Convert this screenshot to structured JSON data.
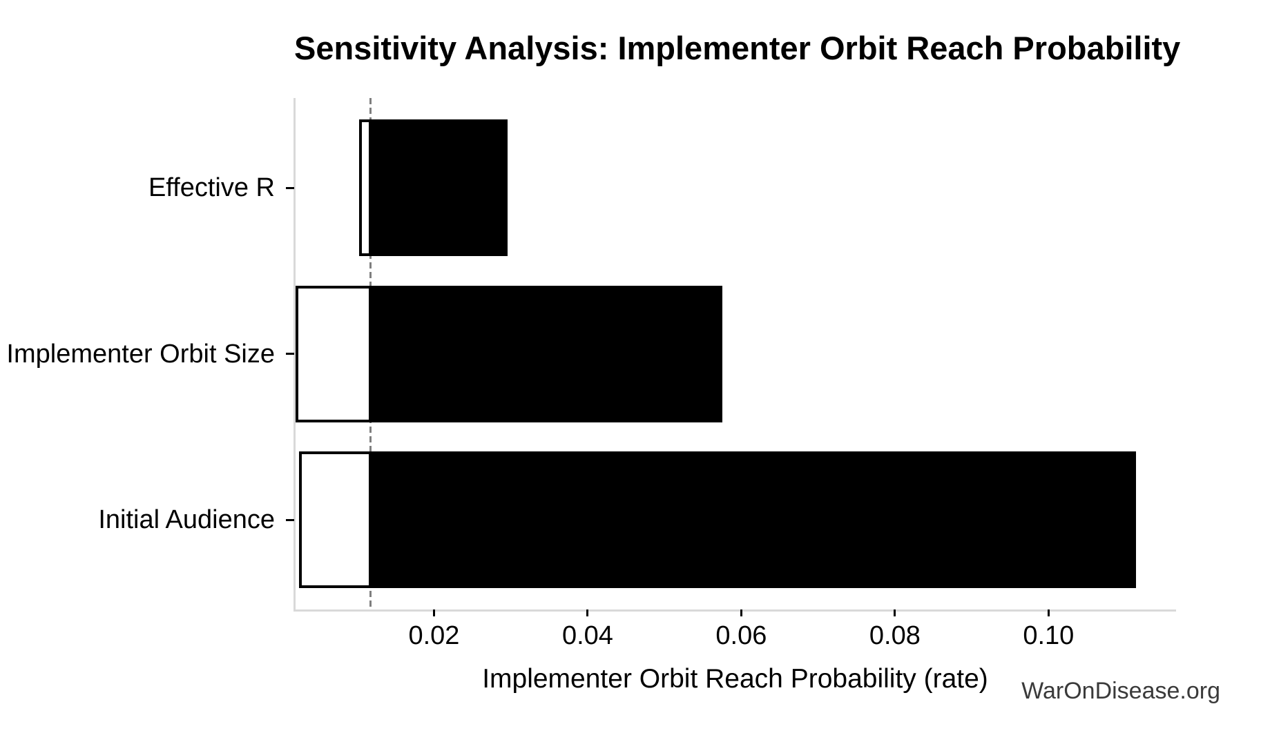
{
  "title": "Sensitivity Analysis: Implementer Orbit Reach Probability",
  "watermark": "WarOnDisease.org",
  "chart_data": {
    "type": "bar",
    "subtype": "tornado-sensitivity",
    "orientation": "horizontal",
    "title": "Sensitivity Analysis: Implementer Orbit Reach Probability",
    "xlabel": "Implementer Orbit Reach Probability (rate)",
    "ylabel": "",
    "categories": [
      "Effective R",
      "Implementer Orbit Size",
      "Initial Audience"
    ],
    "series": [
      {
        "name": "low",
        "values": [
          0.0104,
          0.0022,
          0.0026
        ]
      },
      {
        "name": "high",
        "values": [
          0.0294,
          0.0574,
          0.1112
        ]
      }
    ],
    "baseline": 0.0117,
    "xlim": [
      0.0018,
      0.1166
    ],
    "xticks": [
      0.02,
      0.04,
      0.06,
      0.08,
      0.1
    ],
    "xtick_labels": [
      "0.02",
      "0.04",
      "0.06",
      "0.08",
      "0.10"
    ],
    "grid": false,
    "legend_position": "none",
    "colors": {
      "bar": "#000000",
      "low_fill": "#ffffff",
      "baseline_line": "#7f7f7f",
      "spine": "#d9d9d9",
      "tick": "#000000",
      "text": "#000000",
      "watermark_text": "#3a3a3a"
    }
  }
}
